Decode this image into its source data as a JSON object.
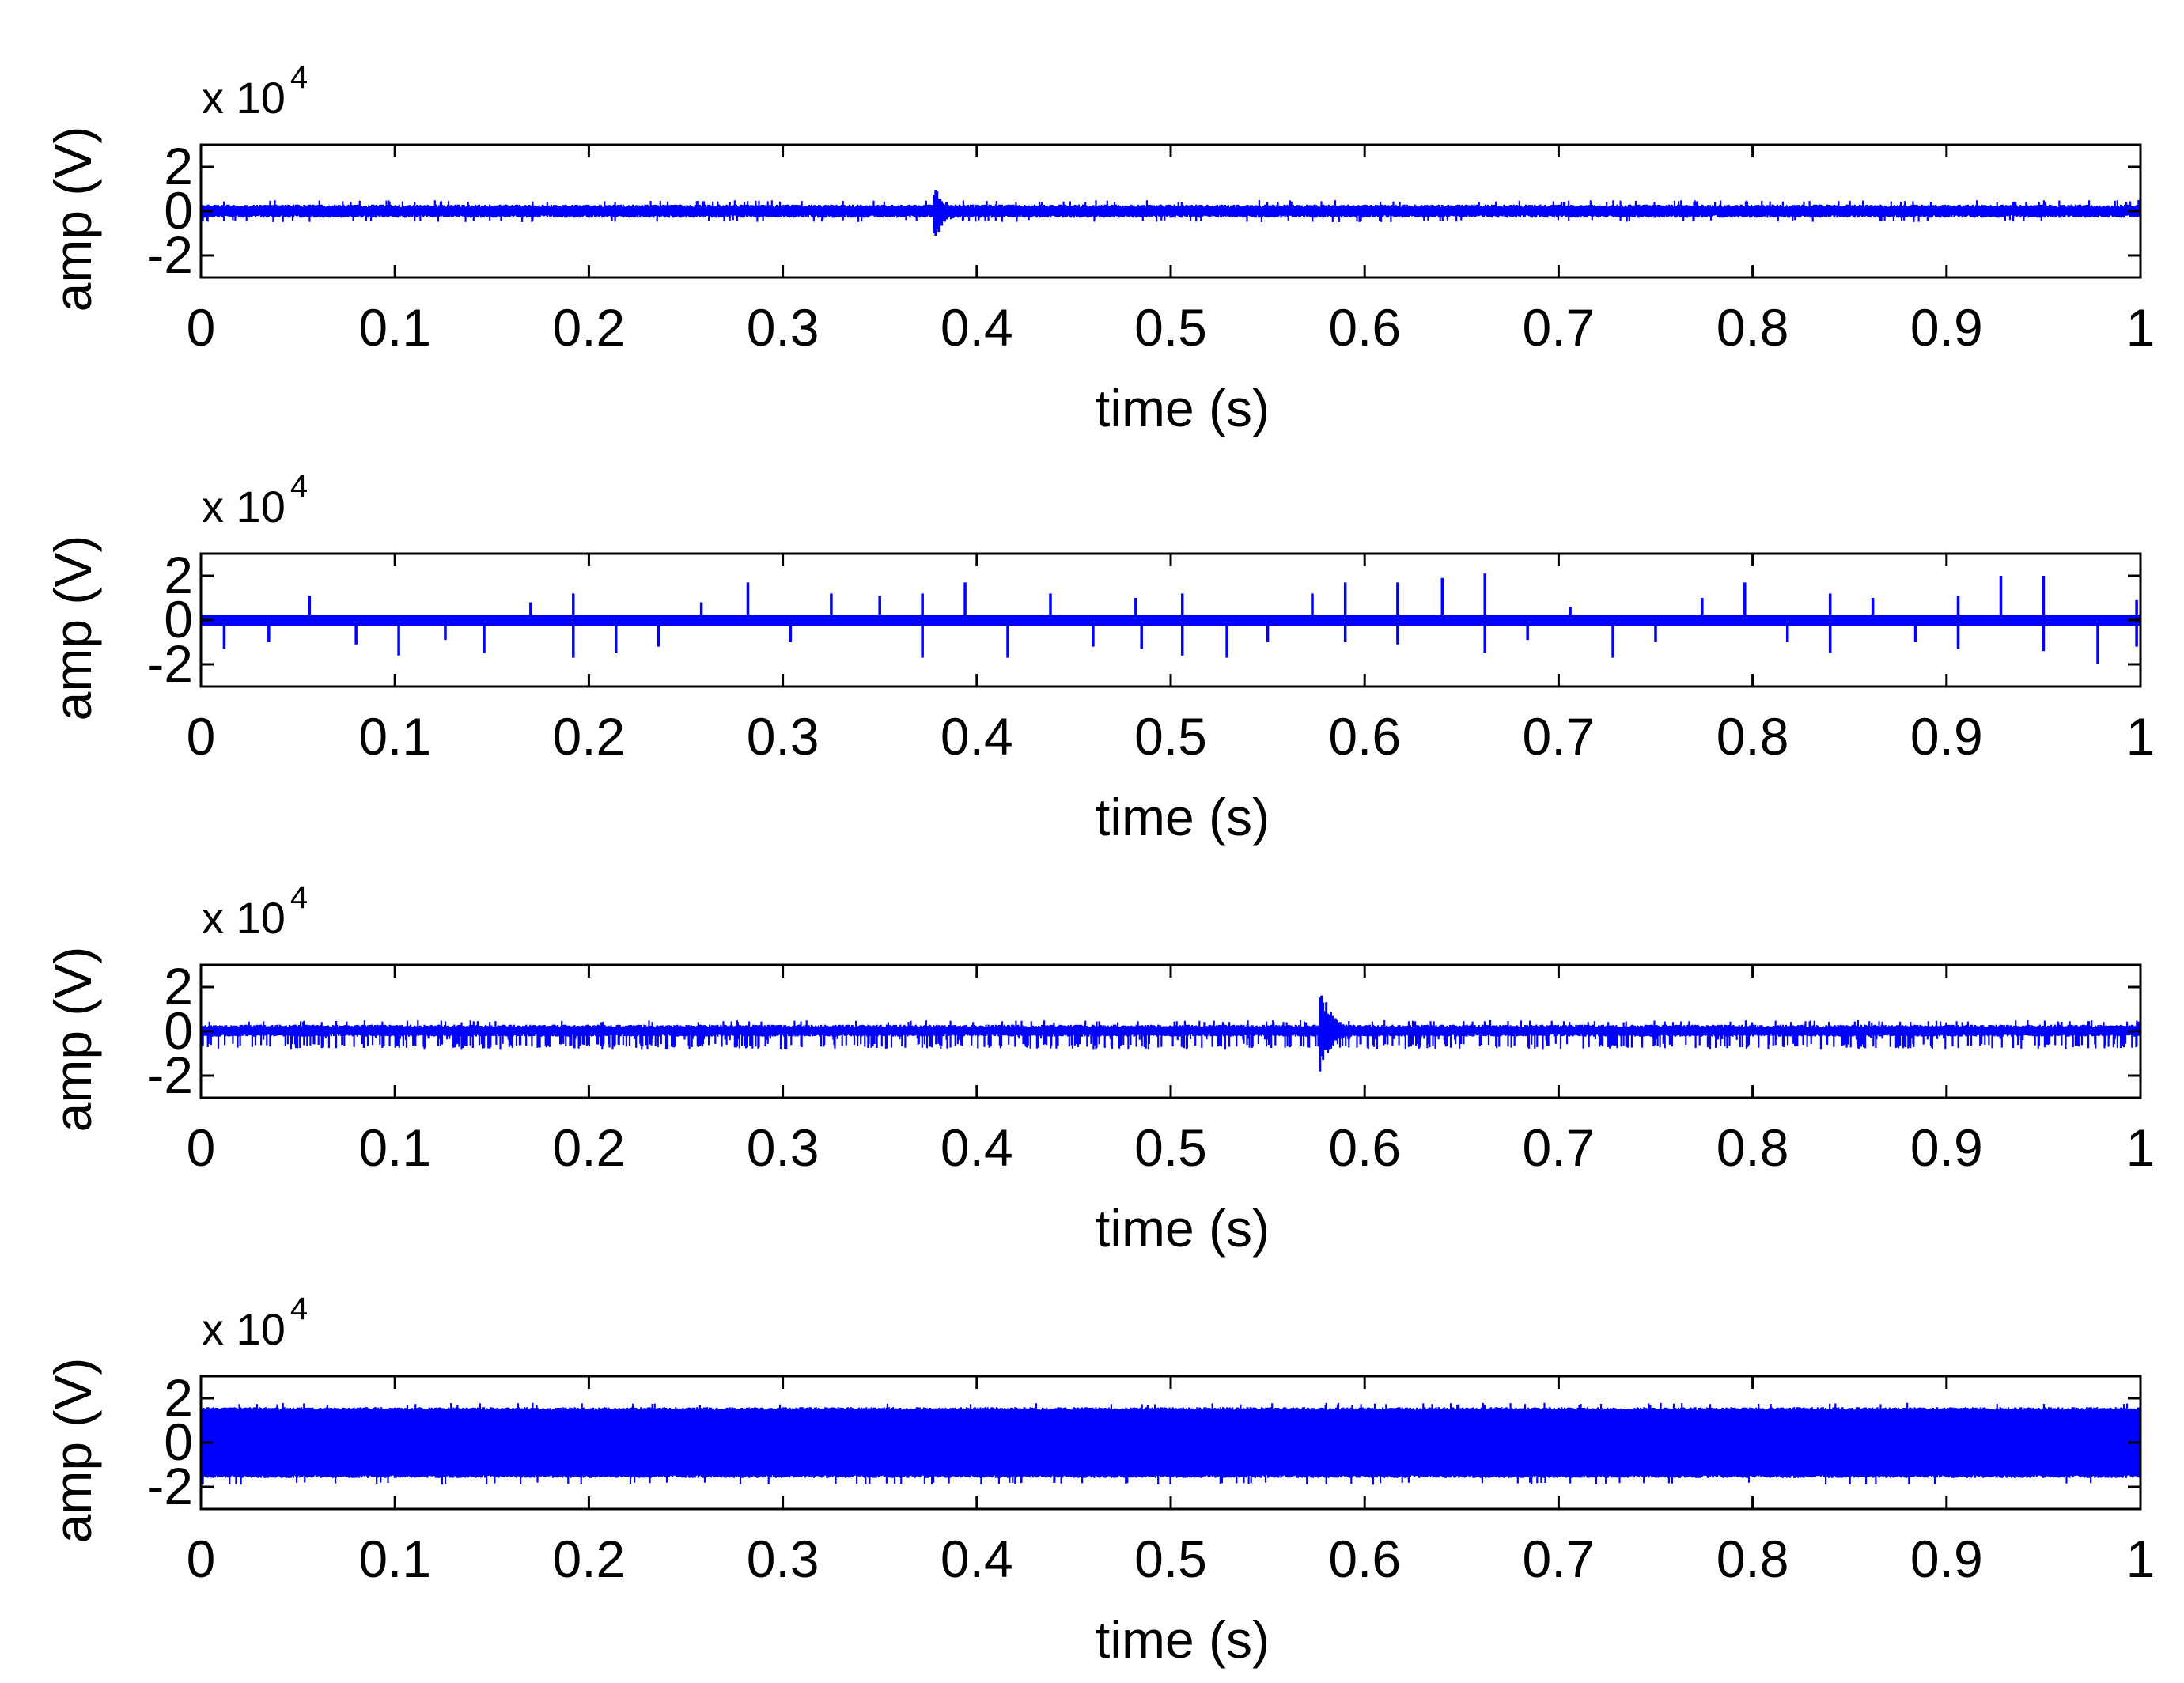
{
  "figure": {
    "background": "#ffffff",
    "line_color": "#0000ff"
  },
  "chart_data": [
    {
      "type": "line",
      "title": "",
      "xlabel": "time (s)",
      "ylabel": "amp (V)",
      "y_exponent": {
        "prefix": "x 10",
        "power": "4"
      },
      "xlim": [
        0,
        1
      ],
      "ylim": [
        -3,
        3
      ],
      "xticks": [
        "0",
        "0.1",
        "0.2",
        "0.3",
        "0.4",
        "0.5",
        "0.6",
        "0.7",
        "0.8",
        "0.9",
        "1"
      ],
      "yticks": [
        "2",
        "0",
        "-2"
      ],
      "ytick_values": [
        2,
        0,
        -2
      ],
      "grid": false,
      "series": [
        {
          "style": "noise",
          "baseline": 0,
          "noise_range": [
            -0.5,
            0.5
          ],
          "events": [
            {
              "t": 0.378,
              "peak": 1.2,
              "trough": -1.5
            }
          ]
        }
      ]
    },
    {
      "type": "line",
      "title": "",
      "xlabel": "time (s)",
      "ylabel": "amp (V)",
      "y_exponent": {
        "prefix": "x 10",
        "power": "4"
      },
      "xlim": [
        0,
        1
      ],
      "ylim": [
        -3,
        3
      ],
      "xticks": [
        "0",
        "0.1",
        "0.2",
        "0.3",
        "0.4",
        "0.5",
        "0.6",
        "0.7",
        "0.8",
        "0.9",
        "1"
      ],
      "yticks": [
        "2",
        "0",
        "-2"
      ],
      "ytick_values": [
        2,
        0,
        -2
      ],
      "grid": false,
      "series": [
        {
          "style": "spikes",
          "baseline": 0,
          "noise_range": [
            -0.25,
            0.25
          ],
          "spikes": [
            {
              "t": 0.012,
              "v": -1.3
            },
            {
              "t": 0.035,
              "v": -1.0
            },
            {
              "t": 0.056,
              "v": 1.1
            },
            {
              "t": 0.08,
              "v": -1.1
            },
            {
              "t": 0.102,
              "v": -1.6
            },
            {
              "t": 0.126,
              "v": -0.9
            },
            {
              "t": 0.146,
              "v": -1.5
            },
            {
              "t": 0.17,
              "v": 0.8
            },
            {
              "t": 0.192,
              "v": 1.2
            },
            {
              "t": 0.192,
              "v": -1.7
            },
            {
              "t": 0.214,
              "v": -1.5
            },
            {
              "t": 0.236,
              "v": -1.2
            },
            {
              "t": 0.258,
              "v": 0.8
            },
            {
              "t": 0.282,
              "v": 1.7
            },
            {
              "t": 0.304,
              "v": -1.0
            },
            {
              "t": 0.325,
              "v": 1.2
            },
            {
              "t": 0.35,
              "v": 1.1
            },
            {
              "t": 0.372,
              "v": 1.2
            },
            {
              "t": 0.372,
              "v": -1.7
            },
            {
              "t": 0.394,
              "v": 1.7
            },
            {
              "t": 0.416,
              "v": -1.7
            },
            {
              "t": 0.438,
              "v": 1.2
            },
            {
              "t": 0.46,
              "v": -1.2
            },
            {
              "t": 0.482,
              "v": 1.0
            },
            {
              "t": 0.485,
              "v": -1.3
            },
            {
              "t": 0.506,
              "v": 1.2
            },
            {
              "t": 0.506,
              "v": -1.6
            },
            {
              "t": 0.529,
              "v": -1.7
            },
            {
              "t": 0.55,
              "v": -1.0
            },
            {
              "t": 0.573,
              "v": 1.2
            },
            {
              "t": 0.59,
              "v": 1.7
            },
            {
              "t": 0.59,
              "v": -1.0
            },
            {
              "t": 0.617,
              "v": 1.7
            },
            {
              "t": 0.617,
              "v": -1.1
            },
            {
              "t": 0.64,
              "v": 1.9
            },
            {
              "t": 0.662,
              "v": 2.1
            },
            {
              "t": 0.662,
              "v": -1.5
            },
            {
              "t": 0.684,
              "v": -0.9
            },
            {
              "t": 0.706,
              "v": 0.6
            },
            {
              "t": 0.728,
              "v": -1.7
            },
            {
              "t": 0.75,
              "v": -1.0
            },
            {
              "t": 0.774,
              "v": 1.0
            },
            {
              "t": 0.796,
              "v": 1.7
            },
            {
              "t": 0.818,
              "v": -1.0
            },
            {
              "t": 0.84,
              "v": 1.2
            },
            {
              "t": 0.84,
              "v": -1.5
            },
            {
              "t": 0.862,
              "v": 1.0
            },
            {
              "t": 0.884,
              "v": -1.0
            },
            {
              "t": 0.906,
              "v": 1.1
            },
            {
              "t": 0.906,
              "v": -1.3
            },
            {
              "t": 0.928,
              "v": 2.0
            },
            {
              "t": 0.95,
              "v": 2.0
            },
            {
              "t": 0.95,
              "v": -1.4
            },
            {
              "t": 0.978,
              "v": -2.0
            },
            {
              "t": 0.998,
              "v": 0.9
            },
            {
              "t": 0.998,
              "v": -1.2
            }
          ]
        }
      ]
    },
    {
      "type": "line",
      "title": "",
      "xlabel": "time (s)",
      "ylabel": "amp (V)",
      "y_exponent": {
        "prefix": "x 10",
        "power": "4"
      },
      "xlim": [
        0,
        1
      ],
      "ylim": [
        -3,
        3
      ],
      "xticks": [
        "0",
        "0.1",
        "0.2",
        "0.3",
        "0.4",
        "0.5",
        "0.6",
        "0.7",
        "0.8",
        "0.9",
        "1"
      ],
      "yticks": [
        "2",
        "0",
        "-2"
      ],
      "ytick_values": [
        2,
        0,
        -2
      ],
      "grid": false,
      "series": [
        {
          "style": "noise",
          "baseline": 0,
          "noise_range": [
            -0.4,
            0.5
          ],
          "dense_negative": -0.8,
          "events": [
            {
              "t": 0.577,
              "peak": 2.2,
              "trough": -1.9
            }
          ]
        }
      ]
    },
    {
      "type": "line",
      "title": "",
      "xlabel": "time (s)",
      "ylabel": "amp (V)",
      "y_exponent": {
        "prefix": "x 10",
        "power": "4"
      },
      "xlim": [
        0,
        1
      ],
      "ylim": [
        -3,
        3
      ],
      "xticks": [
        "0",
        "0.1",
        "0.2",
        "0.3",
        "0.4",
        "0.5",
        "0.6",
        "0.7",
        "0.8",
        "0.9",
        "1"
      ],
      "yticks": [
        "2",
        "0",
        "-2"
      ],
      "ytick_values": [
        2,
        0,
        -2
      ],
      "grid": false,
      "series": [
        {
          "style": "band",
          "baseline": 0,
          "noise_range": [
            -1.6,
            1.6
          ],
          "band_extreme": [
            -1.9,
            1.8
          ]
        }
      ]
    }
  ]
}
